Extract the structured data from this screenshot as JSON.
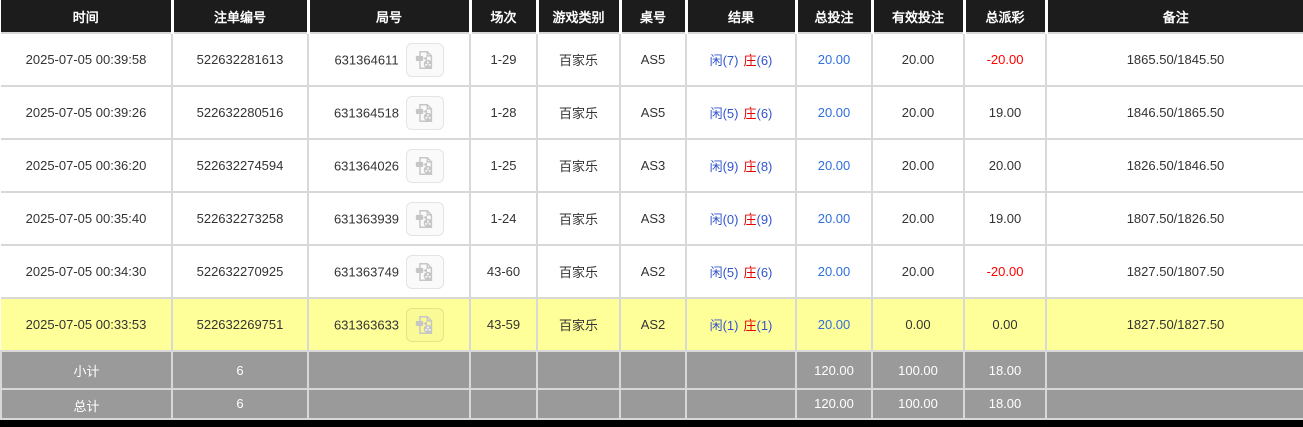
{
  "colors": {
    "header_bg": "#1c1c1c",
    "header_text": "#ffffff",
    "row_border": "#d8d8d8",
    "highlight_row_bg": "#ffff99",
    "summary_row_bg": "#9a9a9a",
    "link_blue": "#2e6fe0",
    "player_blue": "#3355cc",
    "banker_red": "#e60000",
    "negative_red": "#ff0000",
    "body_text": "#333333"
  },
  "table": {
    "columns": [
      {
        "key": "time",
        "label": "时间"
      },
      {
        "key": "bet_no",
        "label": "注单编号"
      },
      {
        "key": "round_no",
        "label": "局号"
      },
      {
        "key": "session",
        "label": "场次"
      },
      {
        "key": "game_type",
        "label": "游戏类别"
      },
      {
        "key": "table_no",
        "label": "桌号"
      },
      {
        "key": "result",
        "label": "结果"
      },
      {
        "key": "total_bet",
        "label": "总投注"
      },
      {
        "key": "valid_bet",
        "label": "有效投注"
      },
      {
        "key": "payout",
        "label": "总派彩"
      },
      {
        "key": "remark",
        "label": "备注"
      }
    ],
    "rows": [
      {
        "time": "2025-07-05 00:39:58",
        "bet_no": "522632281613",
        "round_no": "631364611",
        "session": "1-29",
        "game_type": "百家乐",
        "table_no": "AS5",
        "result_player": "闲(7)",
        "result_banker_label": "庄",
        "result_banker_score": "(6)",
        "total_bet": "20.00",
        "valid_bet": "20.00",
        "payout": "-20.00",
        "remark": "1865.50/1845.50",
        "highlighted": false
      },
      {
        "time": "2025-07-05 00:39:26",
        "bet_no": "522632280516",
        "round_no": "631364518",
        "session": "1-28",
        "game_type": "百家乐",
        "table_no": "AS5",
        "result_player": "闲(5)",
        "result_banker_label": "庄",
        "result_banker_score": "(6)",
        "total_bet": "20.00",
        "valid_bet": "20.00",
        "payout": "19.00",
        "remark": "1846.50/1865.50",
        "highlighted": false
      },
      {
        "time": "2025-07-05 00:36:20",
        "bet_no": "522632274594",
        "round_no": "631364026",
        "session": "1-25",
        "game_type": "百家乐",
        "table_no": "AS3",
        "result_player": "闲(9)",
        "result_banker_label": "庄",
        "result_banker_score": "(8)",
        "total_bet": "20.00",
        "valid_bet": "20.00",
        "payout": "20.00",
        "remark": "1826.50/1846.50",
        "highlighted": false
      },
      {
        "time": "2025-07-05 00:35:40",
        "bet_no": "522632273258",
        "round_no": "631363939",
        "session": "1-24",
        "game_type": "百家乐",
        "table_no": "AS3",
        "result_player": "闲(0)",
        "result_banker_label": "庄",
        "result_banker_score": "(9)",
        "total_bet": "20.00",
        "valid_bet": "20.00",
        "payout": "19.00",
        "remark": "1807.50/1826.50",
        "highlighted": false
      },
      {
        "time": "2025-07-05 00:34:30",
        "bet_no": "522632270925",
        "round_no": "631363749",
        "session": "43-60",
        "game_type": "百家乐",
        "table_no": "AS2",
        "result_player": "闲(5)",
        "result_banker_label": "庄",
        "result_banker_score": "(6)",
        "total_bet": "20.00",
        "valid_bet": "20.00",
        "payout": "-20.00",
        "remark": "1827.50/1807.50",
        "highlighted": false
      },
      {
        "time": "2025-07-05 00:33:53",
        "bet_no": "522632269751",
        "round_no": "631363633",
        "session": "43-59",
        "game_type": "百家乐",
        "table_no": "AS2",
        "result_player": "闲(1)",
        "result_banker_label": "庄",
        "result_banker_score": "(1)",
        "total_bet": "20.00",
        "valid_bet": "0.00",
        "payout": "0.00",
        "remark": "1827.50/1827.50",
        "highlighted": true
      }
    ],
    "summary_rows": [
      {
        "label": "小计",
        "count": "6",
        "total_bet": "120.00",
        "valid_bet": "100.00",
        "payout": "18.00"
      },
      {
        "label": "总计",
        "count": "6",
        "total_bet": "120.00",
        "valid_bet": "100.00",
        "payout": "18.00"
      }
    ],
    "video_icon_name": "video-replay"
  }
}
